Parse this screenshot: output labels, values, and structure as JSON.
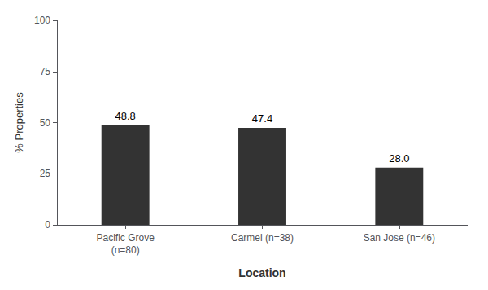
{
  "chart_data": {
    "type": "bar",
    "categories": [
      "Pacific Grove\n(n=80)",
      "Carmel (n=38)",
      "San Jose (n=46)"
    ],
    "values": [
      48.8,
      47.4,
      28.0
    ],
    "value_labels": [
      "48.8",
      "47.4",
      "28.0"
    ],
    "data_labels": true,
    "color": "#333333",
    "xlabel": "Location",
    "ylabel": "% Properties",
    "ylim": [
      0,
      100
    ],
    "yticks": [
      0,
      25,
      50,
      75,
      100
    ],
    "grid": false
  }
}
